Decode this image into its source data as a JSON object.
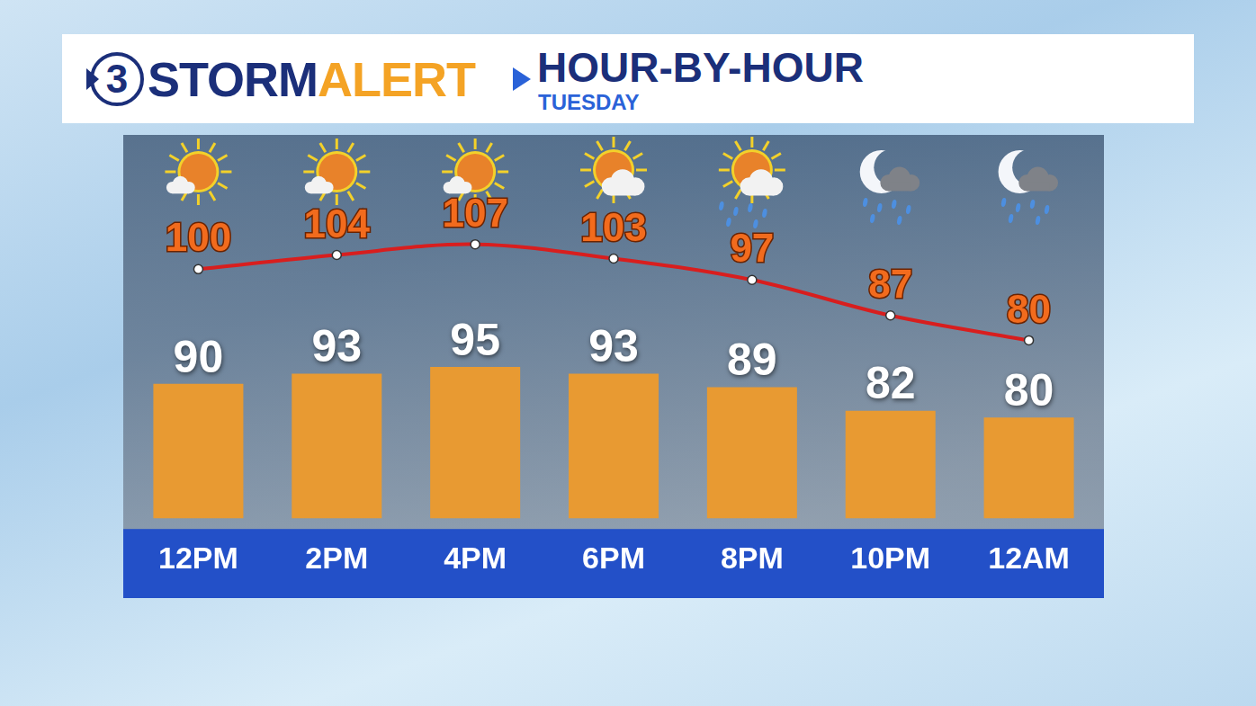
{
  "header": {
    "logo_number": "3",
    "brand_1": "STORM",
    "brand_2": "ALERT",
    "title": "HOUR-BY-HOUR",
    "subtitle": "TUESDAY"
  },
  "chart_data": {
    "type": "bar",
    "categories": [
      "12PM",
      "2PM",
      "4PM",
      "6PM",
      "8PM",
      "10PM",
      "12AM"
    ],
    "series": [
      {
        "type": "bar",
        "color": "#e89a32",
        "values": [
          90,
          93,
          95,
          93,
          89,
          82,
          80
        ]
      },
      {
        "type": "line",
        "color": "#d81e1e",
        "marker": "circle",
        "line_style": "solid",
        "axis": "y2",
        "values": [
          100,
          104,
          107,
          103,
          97,
          87,
          80
        ]
      }
    ],
    "ylim": [
      50,
      140
    ],
    "yticks": [
      50,
      80,
      110,
      140
    ],
    "y2lim": [
      30,
      115
    ],
    "y2ticks": [
      30,
      115
    ],
    "grid": false,
    "data_labels": true,
    "tick_labels": "x"
  }
}
